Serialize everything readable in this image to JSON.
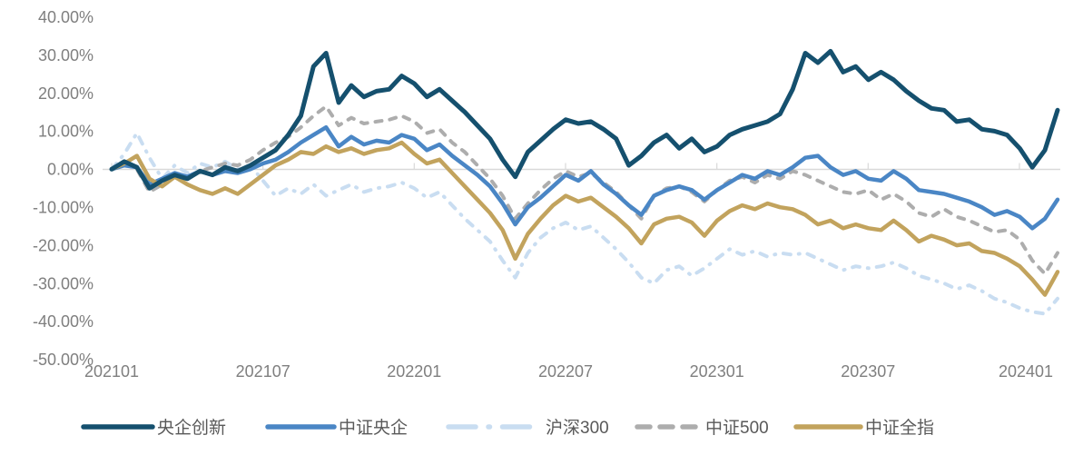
{
  "chart_data": {
    "type": "line",
    "title": "",
    "x_start": "202101",
    "x_end": "202402",
    "points_per_month": 2,
    "x_tick_labels": [
      "202101",
      "202107",
      "202201",
      "202207",
      "202301",
      "202307",
      "202401"
    ],
    "y_tick_labels": [
      "40.00%",
      "30.00%",
      "20.00%",
      "10.00%",
      "0.00%",
      "-10.00%",
      "-20.00%",
      "-30.00%",
      "-40.00%",
      "-50.00%"
    ],
    "y_tick_values": [
      40,
      30,
      20,
      10,
      0,
      -10,
      -20,
      -30,
      -40,
      -50
    ],
    "ylim": [
      -50,
      40
    ],
    "y_unit": "percent_cumulative_return",
    "grid": "zero-line-only",
    "legend_position": "bottom",
    "colors": {
      "background": "#FFFFFF",
      "axis_line": "#D9D9D9",
      "tick_label": "#7F7F7F",
      "legend_text": "#595959"
    },
    "series": [
      {
        "name": "央企创新",
        "color": "#15506E",
        "style": "solid",
        "values": [
          0,
          2,
          0.5,
          -5,
          -3,
          -1.5,
          -2.5,
          -0.5,
          -1.5,
          0.5,
          -0.5,
          1,
          3,
          5,
          9,
          14,
          27,
          30.5,
          17.5,
          22,
          19,
          20.5,
          21,
          24.5,
          22.5,
          19,
          21,
          18,
          15,
          11.5,
          8,
          2.5,
          -2,
          4.5,
          7.5,
          10.5,
          13,
          12,
          12.5,
          10.5,
          8,
          1,
          3.5,
          7,
          9,
          5.5,
          8,
          4.5,
          6,
          9,
          10.5,
          11.5,
          12.5,
          14.5,
          21,
          30.5,
          28,
          31,
          25.5,
          27,
          23.5,
          25.5,
          23.5,
          20.5,
          18,
          16,
          15.5,
          12.5,
          13,
          10.5,
          10,
          9,
          5.5,
          0.5,
          5,
          15.5
        ]
      },
      {
        "name": "中证央企",
        "color": "#4A86C5",
        "style": "solid",
        "values": [
          0,
          1,
          0.5,
          -4,
          -2.5,
          -1,
          -2,
          -0.5,
          -1.5,
          -0.5,
          -1,
          0,
          1.5,
          2.5,
          4.5,
          7,
          9,
          11,
          6,
          8.5,
          6.5,
          7.5,
          7,
          9,
          8,
          5,
          6.5,
          3.5,
          1,
          -1.5,
          -4.5,
          -9,
          -14.5,
          -10,
          -7.5,
          -4.5,
          -1.5,
          -3,
          -0.5,
          -4,
          -6.5,
          -9.5,
          -12,
          -7,
          -5.5,
          -4.5,
          -5.5,
          -8,
          -5.5,
          -3.5,
          -1.5,
          -2.5,
          -0.5,
          -1.5,
          0.5,
          3,
          3.5,
          0.5,
          -1.5,
          -0.5,
          -2.5,
          -3,
          -0.5,
          -2.5,
          -5.5,
          -6,
          -6.5,
          -7.5,
          -8.5,
          -10,
          -12,
          -11,
          -12.5,
          -15.5,
          -13,
          -8
        ]
      },
      {
        "name": "沪深300",
        "color": "#C9DDF1",
        "style": "dash-dot",
        "values": [
          0,
          4,
          9.5,
          3,
          -2.5,
          1,
          -1,
          1.5,
          0.5,
          2,
          0,
          1,
          -3,
          -7,
          -5,
          -6.5,
          -4,
          -7,
          -5.5,
          -4,
          -6,
          -5,
          -4.5,
          -3.5,
          -5,
          -7.5,
          -6,
          -9.5,
          -13,
          -16,
          -19,
          -24,
          -28.5,
          -22,
          -18,
          -15.5,
          -14,
          -16,
          -15,
          -18,
          -21,
          -24.5,
          -28.5,
          -30,
          -26.5,
          -25.5,
          -28,
          -26,
          -23.5,
          -21,
          -22.5,
          -21.5,
          -23,
          -22,
          -22.5,
          -22,
          -23.5,
          -25,
          -26.5,
          -25.5,
          -26,
          -25.5,
          -24.5,
          -26,
          -28,
          -29,
          -30,
          -31.5,
          -30.5,
          -32,
          -34,
          -35,
          -36.5,
          -37.5,
          -38,
          -34
        ]
      },
      {
        "name": "中证500",
        "color": "#ADADAD",
        "style": "dashed",
        "values": [
          0,
          1.5,
          0,
          -6,
          -4,
          -2,
          -2.5,
          -0.5,
          0.5,
          1.5,
          1,
          2.5,
          5,
          7,
          8.5,
          11,
          14,
          16.5,
          11.5,
          13.5,
          12,
          12.5,
          13,
          14,
          12.5,
          9.5,
          10.5,
          7,
          4.5,
          1,
          -2.5,
          -7,
          -13,
          -9,
          -5.5,
          -2.5,
          -0.5,
          -2,
          -1,
          -3.5,
          -6,
          -9.5,
          -13,
          -7,
          -5,
          -4.5,
          -6,
          -8.5,
          -5.5,
          -3,
          -2,
          -3.5,
          -1.5,
          -2.5,
          -0.5,
          -1.5,
          -3,
          -4.5,
          -6,
          -6.5,
          -5.5,
          -8,
          -6.5,
          -8.5,
          -11.5,
          -12.5,
          -10.5,
          -12.5,
          -13.5,
          -15,
          -16.5,
          -16,
          -18.5,
          -24,
          -27.5,
          -22
        ]
      },
      {
        "name": "中证全指",
        "color": "#C2A35D",
        "style": "solid",
        "values": [
          0,
          1.5,
          3.5,
          -2.5,
          -4.5,
          -2,
          -4,
          -5.5,
          -6.5,
          -5,
          -6.5,
          -4,
          -1.5,
          1,
          2.5,
          4.5,
          4,
          6,
          4.5,
          5.5,
          4,
          5,
          5.5,
          7,
          4,
          1.5,
          2.5,
          -1,
          -4.5,
          -8,
          -11.5,
          -16,
          -23.5,
          -17,
          -13,
          -9.5,
          -7,
          -8.5,
          -7.5,
          -10,
          -12.5,
          -15.5,
          -19.5,
          -14.5,
          -13,
          -12.5,
          -14,
          -17.5,
          -13.5,
          -11,
          -9.5,
          -10.5,
          -9,
          -10,
          -10.5,
          -12,
          -14.5,
          -13.5,
          -15.5,
          -14.5,
          -15.5,
          -16,
          -13.5,
          -16,
          -19,
          -17.5,
          -18.5,
          -20,
          -19.5,
          -21.5,
          -22,
          -23.5,
          -25.5,
          -29,
          -33,
          -27
        ]
      }
    ]
  }
}
